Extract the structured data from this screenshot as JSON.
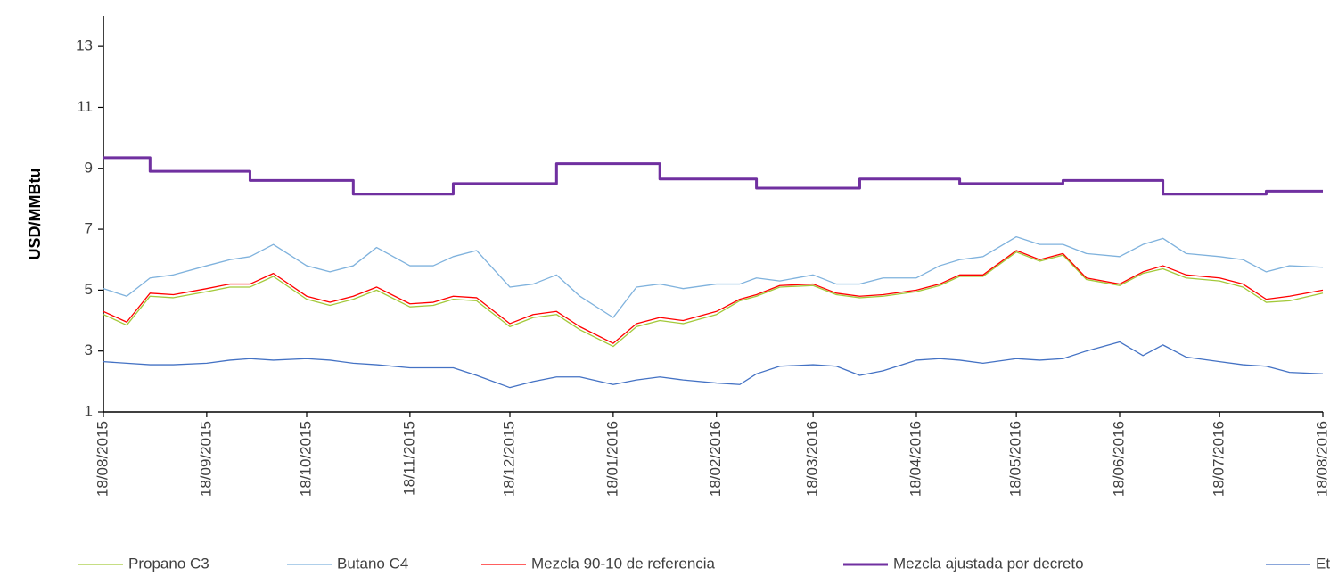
{
  "chart_data": {
    "type": "line",
    "y_label": "USD/MMBtu",
    "x": [
      "18/08/2015",
      "25/08/2015",
      "01/09/2015",
      "08/09/2015",
      "18/09/2015",
      "25/09/2015",
      "01/10/2015",
      "08/10/2015",
      "18/10/2015",
      "25/10/2015",
      "01/11/2015",
      "08/11/2015",
      "18/11/2015",
      "25/11/2015",
      "01/12/2015",
      "08/12/2015",
      "18/12/2015",
      "25/12/2015",
      "01/01/2016",
      "08/01/2016",
      "18/01/2016",
      "25/01/2016",
      "01/02/2016",
      "08/02/2016",
      "18/02/2016",
      "25/02/2016",
      "01/03/2016",
      "08/03/2016",
      "18/03/2016",
      "25/03/2016",
      "01/04/2016",
      "08/04/2016",
      "18/04/2016",
      "25/04/2016",
      "01/05/2016",
      "08/05/2016",
      "18/05/2016",
      "25/05/2016",
      "01/06/2016",
      "08/06/2016",
      "18/06/2016",
      "25/06/2016",
      "01/07/2016",
      "08/07/2016",
      "18/07/2016",
      "25/07/2016",
      "01/08/2016",
      "08/08/2016",
      "18/08/2016"
    ],
    "xlim": [
      "18/08/2015",
      "18/08/2016"
    ],
    "xticks": [
      "18/08/2015",
      "18/09/2015",
      "18/10/2015",
      "18/11/2015",
      "18/12/2015",
      "18/01/2016",
      "18/02/2016",
      "18/03/2016",
      "18/04/2016",
      "18/05/2016",
      "18/06/2016",
      "18/07/2016",
      "18/08/2016"
    ],
    "ylim": [
      1,
      14
    ],
    "yticks": [
      1,
      3,
      5,
      7,
      9,
      11,
      13
    ],
    "grid": false,
    "legend": "bottom",
    "series": [
      {
        "name": "Propano C3",
        "color": "#a3c93a",
        "width": 1.3,
        "values": [
          4.2,
          3.85,
          4.8,
          4.75,
          4.95,
          5.1,
          5.1,
          5.45,
          4.7,
          4.5,
          4.7,
          5.0,
          4.45,
          4.5,
          4.7,
          4.65,
          3.8,
          4.1,
          4.2,
          3.7,
          3.15,
          3.8,
          4.0,
          3.9,
          4.2,
          4.65,
          4.8,
          5.1,
          5.15,
          4.85,
          4.75,
          4.8,
          4.95,
          5.15,
          5.45,
          5.45,
          6.25,
          5.95,
          6.15,
          5.35,
          5.15,
          5.55,
          5.7,
          5.4,
          5.3,
          5.1,
          4.6,
          4.65,
          4.9
        ]
      },
      {
        "name": "Butano C4",
        "color": "#7fb2dd",
        "width": 1.3,
        "values": [
          5.05,
          4.8,
          5.4,
          5.5,
          5.8,
          6.0,
          6.1,
          6.5,
          5.8,
          5.6,
          5.8,
          6.4,
          5.8,
          5.8,
          6.1,
          6.3,
          5.1,
          5.2,
          5.5,
          4.8,
          4.1,
          5.1,
          5.2,
          5.05,
          5.2,
          5.2,
          5.4,
          5.3,
          5.5,
          5.2,
          5.2,
          5.4,
          5.4,
          5.8,
          6.0,
          6.1,
          6.75,
          6.5,
          6.5,
          6.2,
          6.1,
          6.5,
          6.7,
          6.2,
          6.1,
          6.0,
          5.6,
          5.8,
          5.75
        ]
      },
      {
        "name": "Mezcla 90-10 de referencia",
        "color": "#ff0000",
        "width": 1.3,
        "values": [
          4.3,
          3.95,
          4.9,
          4.85,
          5.05,
          5.2,
          5.2,
          5.55,
          4.8,
          4.6,
          4.8,
          5.1,
          4.55,
          4.6,
          4.8,
          4.75,
          3.9,
          4.2,
          4.3,
          3.8,
          3.25,
          3.9,
          4.1,
          4.0,
          4.3,
          4.7,
          4.85,
          5.15,
          5.2,
          4.9,
          4.8,
          4.85,
          5.0,
          5.2,
          5.5,
          5.5,
          6.3,
          6.0,
          6.2,
          5.4,
          5.2,
          5.6,
          5.8,
          5.5,
          5.4,
          5.2,
          4.7,
          4.8,
          5.0
        ]
      },
      {
        "name": "Mezcla ajustada por decreto",
        "color": "#7030a0",
        "width": 3,
        "step": true,
        "values": [
          9.35,
          9.35,
          8.9,
          8.9,
          8.9,
          8.9,
          8.6,
          8.6,
          8.6,
          8.6,
          8.15,
          8.15,
          8.15,
          8.15,
          8.5,
          8.5,
          8.5,
          8.5,
          9.15,
          9.15,
          9.15,
          9.15,
          8.65,
          8.65,
          8.65,
          8.65,
          8.35,
          8.35,
          8.35,
          8.35,
          8.65,
          8.65,
          8.65,
          8.65,
          8.5,
          8.5,
          8.5,
          8.5,
          8.6,
          8.6,
          8.6,
          8.6,
          8.15,
          8.15,
          8.15,
          8.15,
          8.25,
          8.25,
          8.25
        ]
      },
      {
        "name": "Etano",
        "color": "#4472c4",
        "width": 1.3,
        "values": [
          2.65,
          2.6,
          2.55,
          2.55,
          2.6,
          2.7,
          2.75,
          2.7,
          2.75,
          2.7,
          2.6,
          2.55,
          2.45,
          2.45,
          2.45,
          2.2,
          1.8,
          2.0,
          2.15,
          2.15,
          1.9,
          2.05,
          2.15,
          2.05,
          1.95,
          1.9,
          2.25,
          2.5,
          2.55,
          2.5,
          2.2,
          2.35,
          2.7,
          2.75,
          2.7,
          2.6,
          2.75,
          2.7,
          2.75,
          3.0,
          3.3,
          2.85,
          3.2,
          2.8,
          2.65,
          2.55,
          2.5,
          2.3,
          2.25
        ]
      }
    ]
  }
}
